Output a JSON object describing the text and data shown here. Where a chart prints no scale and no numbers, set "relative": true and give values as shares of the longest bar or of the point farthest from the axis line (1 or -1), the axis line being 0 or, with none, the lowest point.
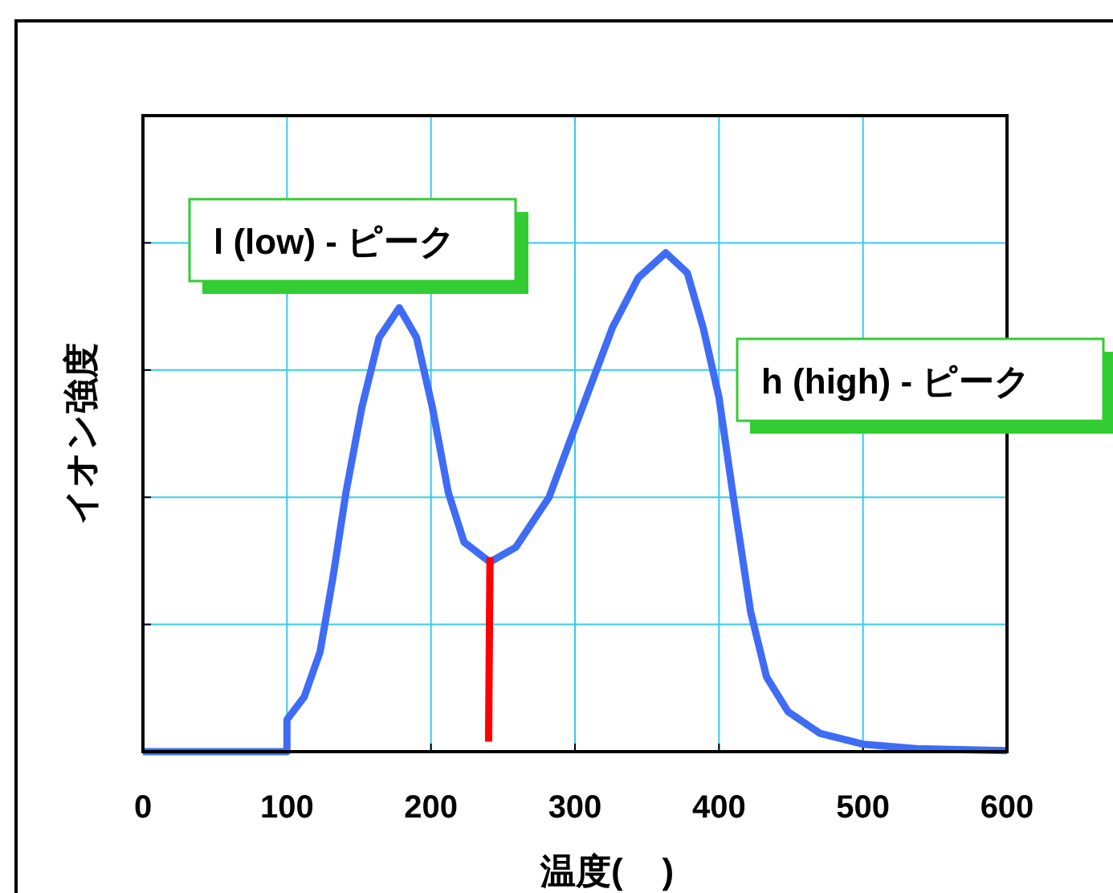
{
  "chart_data": {
    "type": "line",
    "xlabel": "温度(    )",
    "ylabel": "イオン強度",
    "xlim": [
      0,
      600
    ],
    "xticks": [
      0,
      100,
      200,
      300,
      400,
      500,
      600
    ],
    "relative": true,
    "grid": true,
    "annotations": [
      "l (low) - ピーク",
      "h (high) - ピーク"
    ],
    "series": [
      {
        "color": "#3f6cf5",
        "x": [
          0,
          100,
          100,
          112,
          123,
          132,
          141,
          152,
          164,
          178,
          190,
          201,
          212,
          223,
          241,
          259,
          282,
          300,
          326,
          344,
          363,
          378,
          389,
          400,
          410,
          422,
          433,
          448,
          470,
          500,
          537,
          600
        ],
        "values": [
          0,
          0,
          0.064,
          0.11,
          0.2,
          0.35,
          0.52,
          0.69,
          0.83,
          0.89,
          0.83,
          0.69,
          0.52,
          0.42,
          0.38,
          0.41,
          0.51,
          0.65,
          0.85,
          0.95,
          1.0,
          0.96,
          0.85,
          0.71,
          0.51,
          0.28,
          0.15,
          0.08,
          0.037,
          0.015,
          0.006,
          0.002
        ]
      },
      {
        "color": "#ff0000",
        "x": [
          241,
          240
        ],
        "values": [
          0.39,
          0.02
        ]
      }
    ]
  }
}
